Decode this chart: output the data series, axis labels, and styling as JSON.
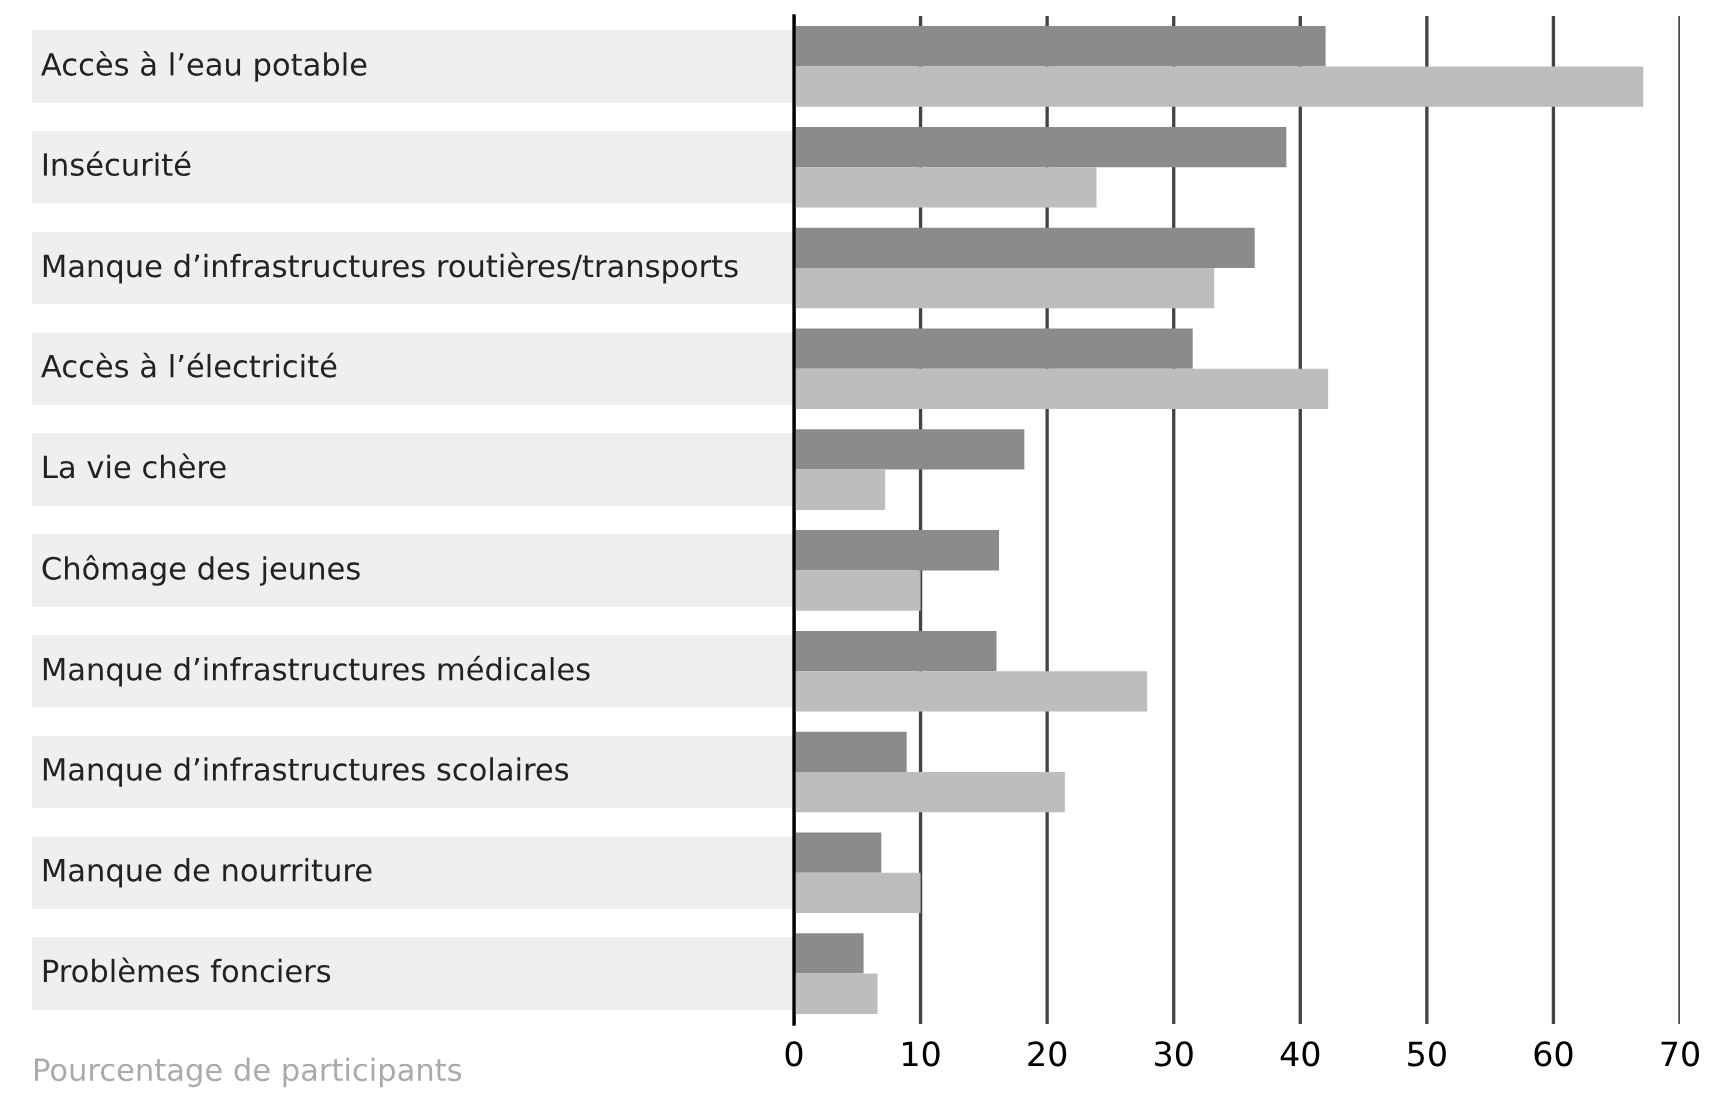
{
  "chart_data": {
    "type": "bar",
    "orientation": "horizontal",
    "xlabel": "Pourcentage de participants",
    "categories": [
      "Accès à l’eau potable",
      "Insécurité",
      "Manque d’infrastructures routières/transports",
      "Accès à l’électricité",
      "La vie chère",
      "Chômage des jeunes",
      "Manque d’infrastructures médicales",
      "Manque d’infrastructures scolaires",
      "Manque de nourriture",
      "Problèmes fonciers"
    ],
    "series": [
      {
        "color": "#8a8b8d",
        "values": [
          42.0,
          38.9,
          36.4,
          31.5,
          18.2,
          16.2,
          16.0,
          8.9,
          6.9,
          5.5
        ]
      },
      {
        "color": "#bcbdbf",
        "values": [
          67.1,
          23.9,
          33.2,
          42.2,
          7.2,
          10.0,
          27.9,
          21.4,
          10.0,
          6.6
        ]
      }
    ],
    "xlim": [
      0,
      70
    ],
    "xticks": [
      0,
      10,
      20,
      30,
      40,
      50,
      60,
      70
    ],
    "grid": "x"
  }
}
